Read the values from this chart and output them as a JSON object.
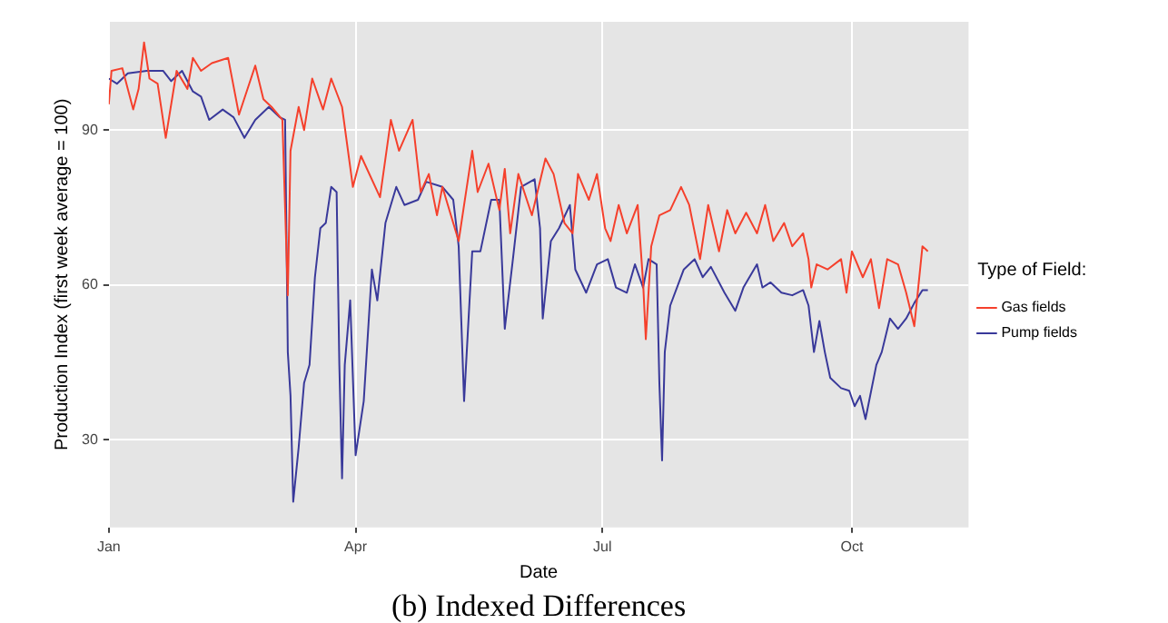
{
  "chart_data": {
    "type": "line",
    "xlabel": "Date",
    "ylabel": "Production Index (first week average = 100)",
    "legend_title": "Type of Field:",
    "annotations": [
      "(b) Indexed Differences"
    ],
    "xlim": [
      "--01-01",
      "--11-13"
    ],
    "xticks": [
      {
        "value": "--01-01",
        "label": "Jan"
      },
      {
        "value": "--04-01",
        "label": "Apr"
      },
      {
        "value": "--07-01",
        "label": "Jul"
      },
      {
        "value": "--10-01",
        "label": "Oct"
      }
    ],
    "ylim": [
      13,
      111
    ],
    "yticks": [
      30,
      60,
      90
    ],
    "grid": true,
    "legend": "right",
    "series": [
      {
        "name": "Gas fields",
        "color": "#f5402c",
        "x": [
          "--01-01",
          "--01-02",
          "--01-06",
          "--01-10",
          "--01-12",
          "--01-14",
          "--01-16",
          "--01-19",
          "--01-22",
          "--01-26",
          "--01-30",
          "--02-01",
          "--02-04",
          "--02-08",
          "--02-14",
          "--02-18",
          "--02-24",
          "--02-27",
          "--03-01",
          "--03-05",
          "--03-07",
          "--03-08",
          "--03-11",
          "--03-13",
          "--03-16",
          "--03-20",
          "--03-23",
          "--03-27",
          "--03-31",
          "--04-03",
          "--04-10",
          "--04-14",
          "--04-17",
          "--04-22",
          "--04-25",
          "--04-28",
          "--05-01",
          "--05-03",
          "--05-09",
          "--05-14",
          "--05-16",
          "--05-20",
          "--05-24",
          "--05-26",
          "--05-28",
          "--05-31",
          "--06-05",
          "--06-10",
          "--06-13",
          "--06-17",
          "--06-20",
          "--06-22",
          "--06-26",
          "--06-29",
          "--07-02",
          "--07-04",
          "--07-07",
          "--07-10",
          "--07-14",
          "--07-16",
          "--07-17",
          "--07-19",
          "--07-22",
          "--07-26",
          "--07-30",
          "--08-02",
          "--08-06",
          "--08-09",
          "--08-13",
          "--08-16",
          "--08-19",
          "--08-23",
          "--08-27",
          "--08-30",
          "--09-02",
          "--09-06",
          "--09-09",
          "--09-13",
          "--09-15",
          "--09-16",
          "--09-18",
          "--09-22",
          "--09-27",
          "--09-29",
          "--10-01",
          "--10-05",
          "--10-08",
          "--10-11",
          "--10-14",
          "--10-18",
          "--10-21",
          "--10-24",
          "--10-27",
          "--10-29"
        ],
        "values": [
          95,
          101.5,
          102,
          94,
          98,
          107,
          100,
          99,
          88.5,
          101.5,
          98,
          104,
          101.5,
          103,
          104,
          93,
          102.5,
          96,
          94.5,
          92,
          58,
          86,
          94.5,
          90,
          100,
          94,
          100,
          94.5,
          79,
          85,
          77,
          92,
          86,
          92,
          78,
          81.5,
          73.5,
          79,
          68.5,
          86,
          78,
          83.5,
          74.5,
          82.5,
          70,
          81.5,
          73.5,
          84.5,
          81.5,
          72,
          70,
          81.5,
          76.5,
          81.5,
          71,
          68.5,
          75.5,
          70,
          75.5,
          60.5,
          49.5,
          67.5,
          73.5,
          74.5,
          79,
          75.5,
          65,
          75.5,
          66.5,
          74.5,
          70,
          74,
          70,
          75.5,
          68.5,
          72,
          67.5,
          70,
          65,
          59.5,
          64,
          63,
          65,
          58.5,
          66.5,
          61.5,
          65,
          55.5,
          65,
          64,
          58.5,
          52,
          67.5,
          66.5
        ]
      },
      {
        "name": "Pump fields",
        "color": "#39399a",
        "x": [
          "--01-01",
          "--01-04",
          "--01-08",
          "--01-15",
          "--01-21",
          "--01-24",
          "--01-28",
          "--02-01",
          "--02-04",
          "--02-07",
          "--02-12",
          "--02-16",
          "--02-20",
          "--02-24",
          "--02-29",
          "--03-04",
          "--03-06",
          "--03-07",
          "--03-08",
          "--03-09",
          "--03-11",
          "--03-13",
          "--03-15",
          "--03-17",
          "--03-19",
          "--03-21",
          "--03-23",
          "--03-25",
          "--03-26",
          "--03-27",
          "--03-28",
          "--03-30",
          "--04-01",
          "--04-04",
          "--04-07",
          "--04-09",
          "--04-12",
          "--04-16",
          "--04-19",
          "--04-24",
          "--04-27",
          "--05-03",
          "--05-07",
          "--05-09",
          "--05-11",
          "--05-14",
          "--05-17",
          "--05-21",
          "--05-24",
          "--05-26",
          "--05-29",
          "--06-01",
          "--06-06",
          "--06-08",
          "--06-09",
          "--06-12",
          "--06-15",
          "--06-19",
          "--06-21",
          "--06-25",
          "--06-29",
          "--07-03",
          "--07-06",
          "--07-10",
          "--07-13",
          "--07-16",
          "--07-18",
          "--07-21",
          "--07-22",
          "--07-23",
          "--07-24",
          "--07-26",
          "--07-31",
          "--08-04",
          "--08-07",
          "--08-10",
          "--08-15",
          "--08-19",
          "--08-22",
          "--08-27",
          "--08-29",
          "--09-01",
          "--09-05",
          "--09-09",
          "--09-13",
          "--09-15",
          "--09-17",
          "--09-19",
          "--09-21",
          "--09-23",
          "--09-27",
          "--09-30",
          "--10-02",
          "--10-04",
          "--10-06",
          "--10-10",
          "--10-12",
          "--10-15",
          "--10-18",
          "--10-21",
          "--10-24",
          "--10-27",
          "--10-29"
        ],
        "values": [
          100,
          99,
          101,
          101.5,
          101.5,
          99.5,
          101.5,
          97.5,
          96.5,
          92,
          94,
          92.5,
          88.5,
          92,
          94.5,
          92.5,
          92,
          47,
          38.5,
          18,
          28.5,
          41,
          44.5,
          61.5,
          71,
          72,
          79,
          78,
          44.5,
          22.5,
          44.5,
          57,
          27,
          37.5,
          63,
          57,
          72,
          79,
          75.5,
          76.5,
          80,
          79,
          76.5,
          67.5,
          37.5,
          66.5,
          66.5,
          76.5,
          76.5,
          51.5,
          65,
          79,
          80.5,
          71,
          53.5,
          68.5,
          71,
          75.5,
          63,
          58.5,
          64,
          65,
          59.5,
          58.5,
          64,
          59.5,
          65,
          64,
          41,
          26,
          47,
          56,
          63,
          65,
          61.5,
          63.5,
          58.5,
          55,
          59.5,
          64,
          59.5,
          60.5,
          58.5,
          58,
          59,
          56,
          47,
          53,
          47,
          42,
          40,
          39.5,
          36.5,
          38.5,
          34,
          44.5,
          47,
          53.5,
          51.5,
          53.5,
          56.5,
          59,
          59
        ]
      }
    ]
  }
}
